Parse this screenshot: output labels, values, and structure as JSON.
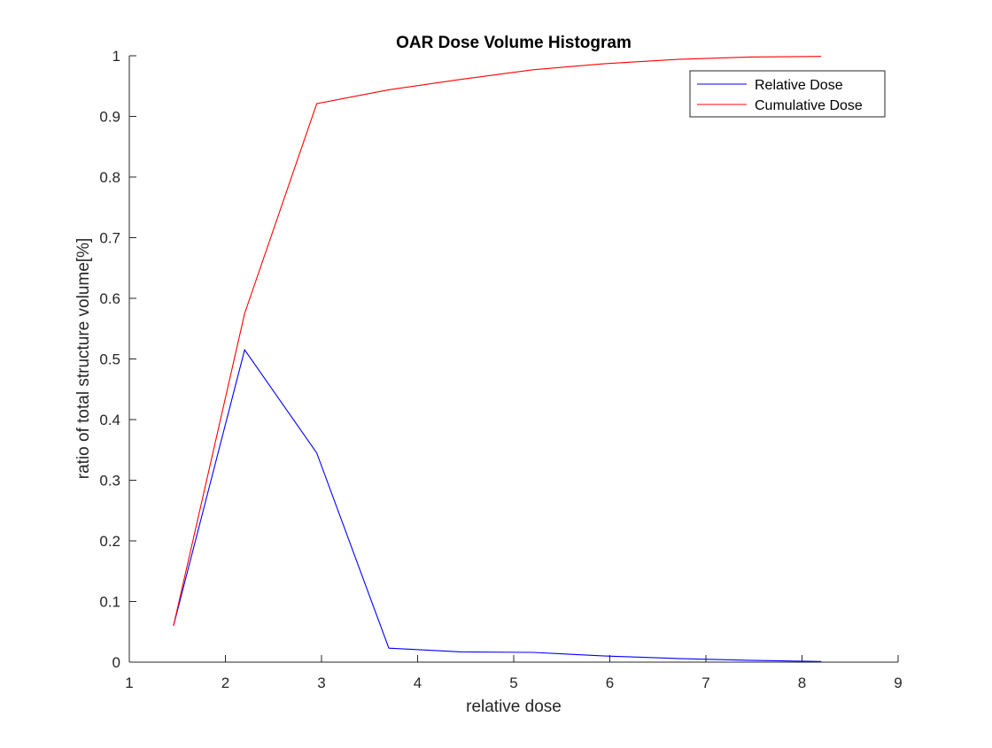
{
  "chart_data": {
    "type": "line",
    "title": "OAR Dose Volume Histogram",
    "xlabel": "relative dose",
    "ylabel": "ratio of total structure volume[%]",
    "xlim": [
      1,
      9
    ],
    "ylim": [
      0,
      1
    ],
    "xticks": [
      1,
      2,
      3,
      4,
      5,
      6,
      7,
      8,
      9
    ],
    "yticks": [
      0,
      0.1,
      0.2,
      0.3,
      0.4,
      0.5,
      0.6,
      0.7,
      0.8,
      0.9,
      1
    ],
    "grid": false,
    "legend_position": "top-right",
    "series": [
      {
        "name": "Relative Dose",
        "color": "#0000ff",
        "x": [
          1.46,
          2.2,
          2.95,
          3.7,
          4.45,
          5.2,
          5.95,
          6.7,
          7.45,
          8.2
        ],
        "y": [
          0.06,
          0.515,
          0.345,
          0.023,
          0.017,
          0.016,
          0.01,
          0.006,
          0.003,
          0.001
        ]
      },
      {
        "name": "Cumulative Dose",
        "color": "#ff0000",
        "x": [
          1.46,
          2.2,
          2.95,
          3.7,
          4.45,
          5.2,
          5.95,
          6.7,
          7.45,
          8.2
        ],
        "y": [
          0.06,
          0.575,
          0.921,
          0.944,
          0.961,
          0.977,
          0.987,
          0.994,
          0.998,
          0.999
        ]
      }
    ]
  }
}
